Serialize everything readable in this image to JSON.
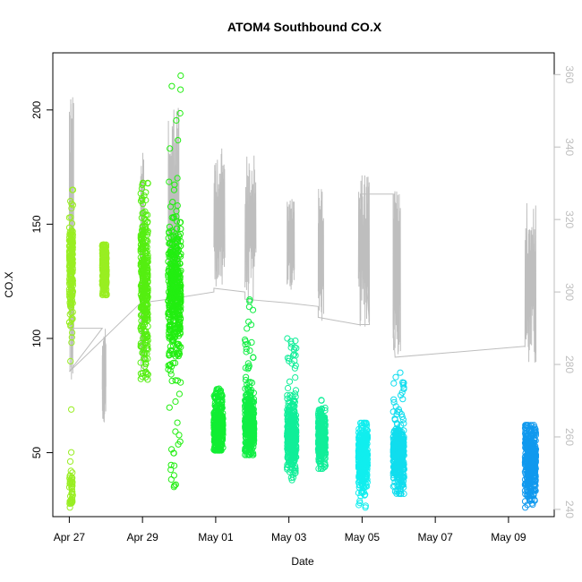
{
  "chart_data": {
    "type": "scatter",
    "title": "ATOM4 Southbound CO.X",
    "xlabel": "Date",
    "ylabel": "CO.X",
    "x_ticks": [
      {
        "day": 0,
        "label": "Apr 27"
      },
      {
        "day": 2,
        "label": "Apr 29"
      },
      {
        "day": 4,
        "label": "May 01"
      },
      {
        "day": 6,
        "label": "May 03"
      },
      {
        "day": 8,
        "label": "May 05"
      },
      {
        "day": 10,
        "label": "May 07"
      },
      {
        "day": 12,
        "label": "May 09"
      }
    ],
    "xlim": [
      -0.45,
      13.25
    ],
    "ylim": [
      22,
      225
    ],
    "y_ticks": [
      50,
      100,
      150,
      200
    ],
    "y2_ticks": [
      240,
      260,
      280,
      300,
      320,
      340,
      360
    ],
    "y2lim": [
      238,
      366
    ],
    "colors": {
      "axis": "#000000",
      "secondary_axis": "#bebebe",
      "secondary_line": "#bebebe"
    },
    "points_series": [
      {
        "x0": 0.0,
        "x1": 0.1,
        "ymin": 26,
        "ymax": 165,
        "center": 132,
        "spread": 12,
        "low_cluster": [
          27,
          40
        ],
        "color": "#99ee22"
      },
      {
        "x0": 0.9,
        "x1": 1.02,
        "ymin": 119,
        "ymax": 141,
        "center": 130,
        "spread": 6,
        "color": "#99ee22"
      },
      {
        "x0": 1.95,
        "x1": 2.15,
        "ymin": 82,
        "ymax": 168,
        "center": 125,
        "spread": 18,
        "color": "#55ee11"
      },
      {
        "x0": 2.7,
        "x1": 3.05,
        "ymin": 35,
        "ymax": 215,
        "center": 120,
        "spread": 15,
        "color": "#22ee11"
      },
      {
        "x0": 3.95,
        "x1": 4.2,
        "ymin": 51,
        "ymax": 78,
        "center": 62,
        "spread": 6,
        "color": "#11ee33"
      },
      {
        "x0": 4.8,
        "x1": 5.05,
        "ymin": 49,
        "ymax": 117,
        "center": 63,
        "spread": 7,
        "color": "#11ee44"
      },
      {
        "x0": 5.95,
        "x1": 6.2,
        "ymin": 38,
        "ymax": 100,
        "center": 58,
        "spread": 7,
        "color": "#11ee99"
      },
      {
        "x0": 6.8,
        "x1": 7.0,
        "ymin": 43,
        "ymax": 73,
        "center": 57,
        "spread": 6,
        "color": "#11ee99"
      },
      {
        "x0": 7.9,
        "x1": 8.15,
        "ymin": 26,
        "ymax": 63,
        "center": 48,
        "spread": 7,
        "color": "#11eeee"
      },
      {
        "x0": 8.85,
        "x1": 9.15,
        "ymin": 32,
        "ymax": 85,
        "center": 49,
        "spread": 7,
        "color": "#11ddee"
      },
      {
        "x0": 12.45,
        "x1": 12.75,
        "ymin": 26,
        "ymax": 62,
        "center": 47,
        "spread": 7,
        "color": "#1199ee"
      }
    ],
    "secondary_line_segments": [
      {
        "x0": 0.0,
        "x1": 0.12,
        "low": 272,
        "high": 359
      },
      {
        "x0": 0.9,
        "x1": 1.0,
        "low": 264,
        "high": 290
      },
      {
        "x0": 1.95,
        "x1": 2.05,
        "low": 278,
        "high": 344
      },
      {
        "x0": 2.7,
        "x1": 3.0,
        "low": 288,
        "high": 353
      },
      {
        "x0": 3.95,
        "x1": 4.25,
        "low": 300,
        "high": 340
      },
      {
        "x0": 4.8,
        "x1": 5.1,
        "low": 296,
        "high": 338
      },
      {
        "x0": 5.95,
        "x1": 6.15,
        "low": 300,
        "high": 326
      },
      {
        "x0": 6.8,
        "x1": 6.95,
        "low": 292,
        "high": 329
      },
      {
        "x0": 7.9,
        "x1": 8.2,
        "low": 290,
        "high": 333
      },
      {
        "x0": 8.85,
        "x1": 9.05,
        "low": 282,
        "high": 328
      },
      {
        "x0": 12.45,
        "x1": 12.75,
        "low": 278,
        "high": 325
      }
    ],
    "secondary_connector": [
      [
        0.0,
        290
      ],
      [
        0.3,
        290
      ],
      [
        0.9,
        290
      ],
      [
        0.0,
        278
      ],
      [
        1.95,
        297
      ],
      [
        2.7,
        298
      ],
      [
        3.95,
        300
      ],
      [
        3.95,
        301
      ],
      [
        4.8,
        300
      ],
      [
        4.8,
        298
      ],
      [
        5.95,
        297
      ],
      [
        6.8,
        296
      ],
      [
        6.8,
        293
      ],
      [
        7.9,
        291
      ],
      [
        8.2,
        291
      ],
      [
        7.95,
        327
      ],
      [
        8.85,
        327
      ],
      [
        8.85,
        291
      ],
      [
        8.9,
        282
      ],
      [
        12.45,
        285
      ]
    ]
  }
}
